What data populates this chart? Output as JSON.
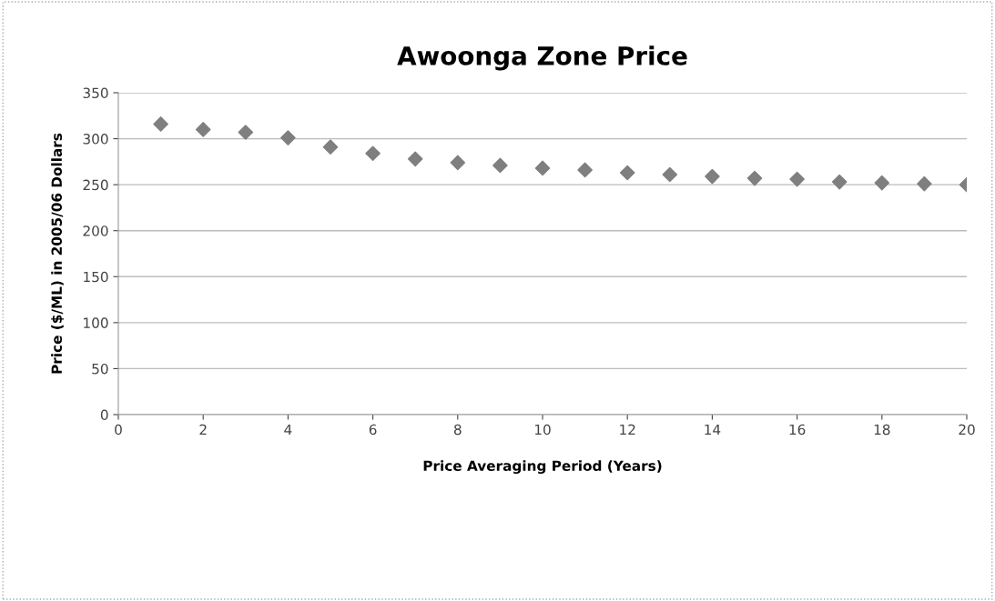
{
  "chart_data": {
    "type": "scatter",
    "title": "Awoonga Zone Price",
    "xlabel": "Price Averaging Period (Years)",
    "ylabel": "Price ($/ML) in 2005/06 Dollars",
    "x": [
      1,
      2,
      3,
      4,
      5,
      6,
      7,
      8,
      9,
      10,
      11,
      12,
      13,
      14,
      15,
      16,
      17,
      18,
      19,
      20
    ],
    "series": [
      {
        "color": "#7f7f7f",
        "values": [
          316,
          310,
          307,
          301,
          291,
          284,
          278,
          274,
          271,
          268,
          266,
          263,
          261,
          259,
          257,
          256,
          253,
          252,
          251,
          250
        ]
      }
    ],
    "xlim": [
      0,
      20
    ],
    "xticks": [
      0,
      2,
      4,
      6,
      8,
      10,
      12,
      14,
      16,
      18,
      20
    ],
    "ylim": [
      0,
      350
    ],
    "yticks": [
      0,
      50,
      100,
      150,
      200,
      250,
      300,
      350
    ],
    "grid": "y",
    "marker": "diamond",
    "legend": false
  }
}
